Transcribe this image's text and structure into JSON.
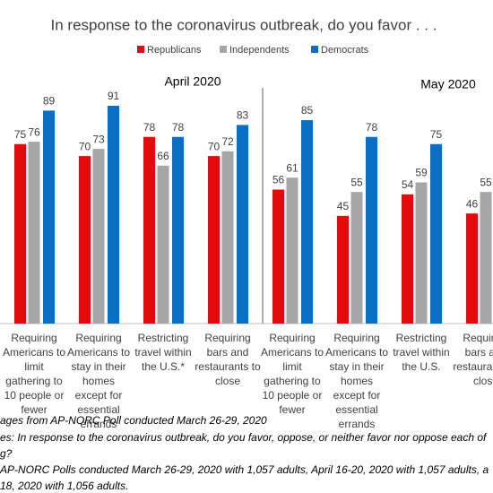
{
  "chart_data": {
    "type": "bar",
    "title": "In response to the coronavirus outbreak, do you favor . . .",
    "groups": [
      "April 2020",
      "May 2020"
    ],
    "categories": [
      "Requiring Americans to limit gathering to 10 people or fewer",
      "Requiring Americans to stay in their homes except for essential errands",
      "Restricting travel within the U.S.*",
      "Requiring bars and restaurants to close",
      "Requiring Americans to limit gathering to 10 people or fewer",
      "Requiring Americans to stay in their homes except for essential errands",
      "Restricting travel within the U.S.",
      "Requiring bars and restaurants to close"
    ],
    "series": [
      {
        "name": "Republicans",
        "color": "#e30b0b",
        "values": [
          75,
          70,
          78,
          70,
          56,
          45,
          54,
          46
        ]
      },
      {
        "name": "Independents",
        "color": "#a6a6a6",
        "values": [
          76,
          73,
          66,
          72,
          61,
          55,
          59,
          55
        ]
      },
      {
        "name": "Democrats",
        "color": "#0a6fc2",
        "values": [
          89,
          91,
          78,
          83,
          85,
          78,
          75,
          null
        ]
      }
    ],
    "ylim": [
      0,
      100
    ]
  },
  "notes": [
    "ages from AP-NORC Poll conducted March 26-29, 2020",
    "es: In response to the coronavirus outbreak, do you favor, oppose, or neither favor nor oppose each of",
    "g?",
    "AP-NORC Polls conducted March 26-29, 2020 with 1,057 adults, April 16-20, 2020 with 1,057 adults, a",
    "18, 2020 with 1,056 adults."
  ]
}
